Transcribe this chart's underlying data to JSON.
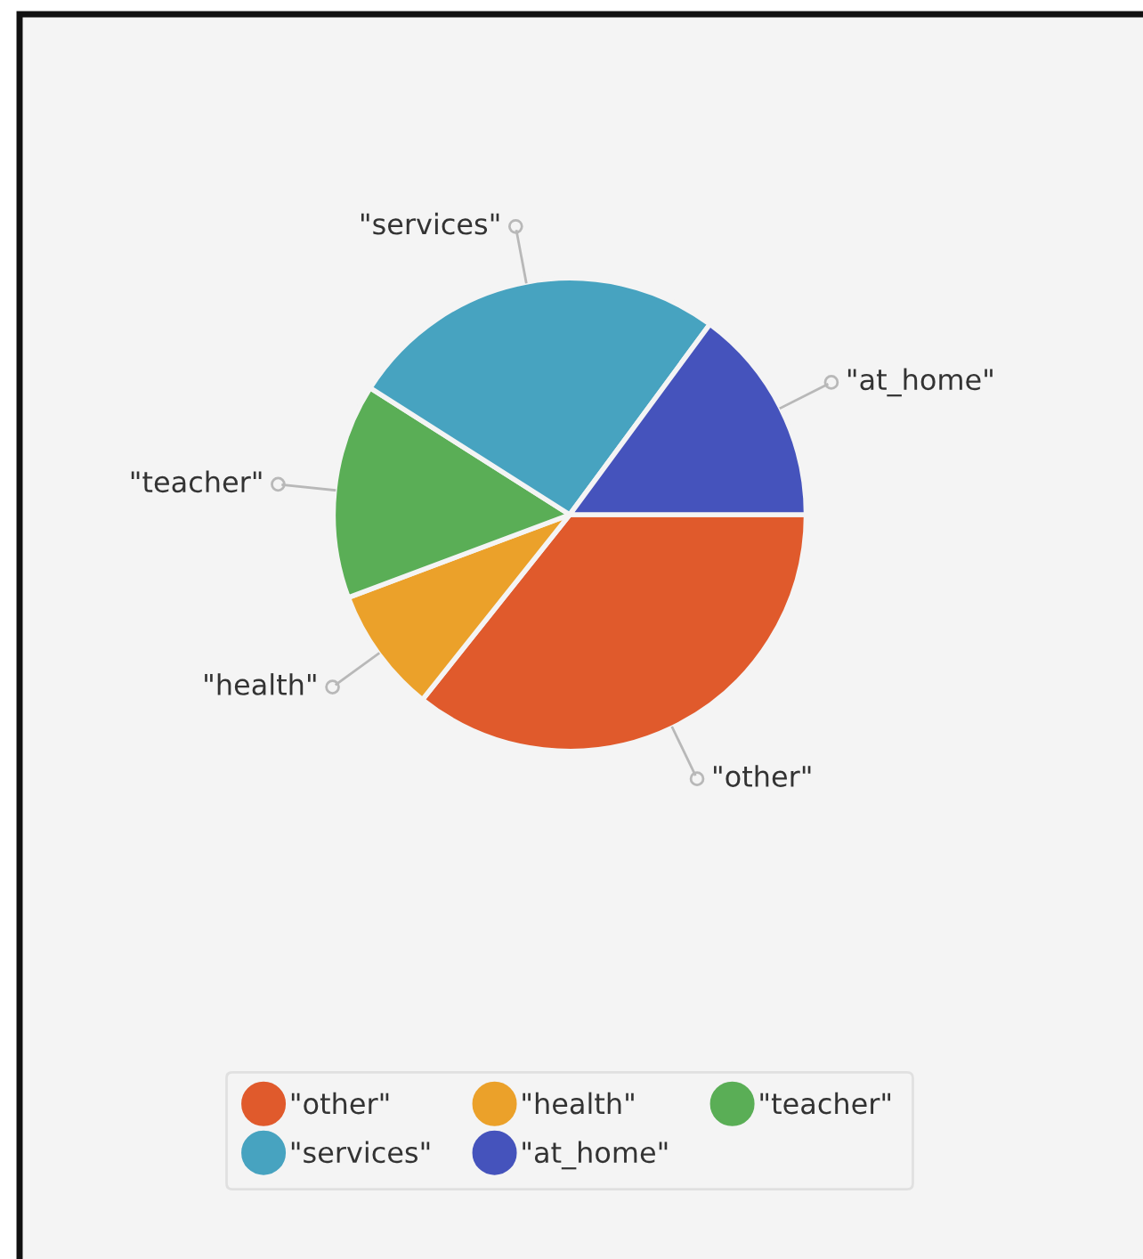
{
  "chart_data": {
    "type": "pie",
    "categories": [
      "\"other\"",
      "\"health\"",
      "\"teacher\"",
      "\"services\"",
      "\"at_home\""
    ],
    "values": [
      35.7,
      8.6,
      14.7,
      26.1,
      14.9
    ],
    "colors": [
      "#e05a2c",
      "#eba12a",
      "#5aae56",
      "#47a3c0",
      "#4553bc"
    ],
    "legend": "bottom"
  }
}
